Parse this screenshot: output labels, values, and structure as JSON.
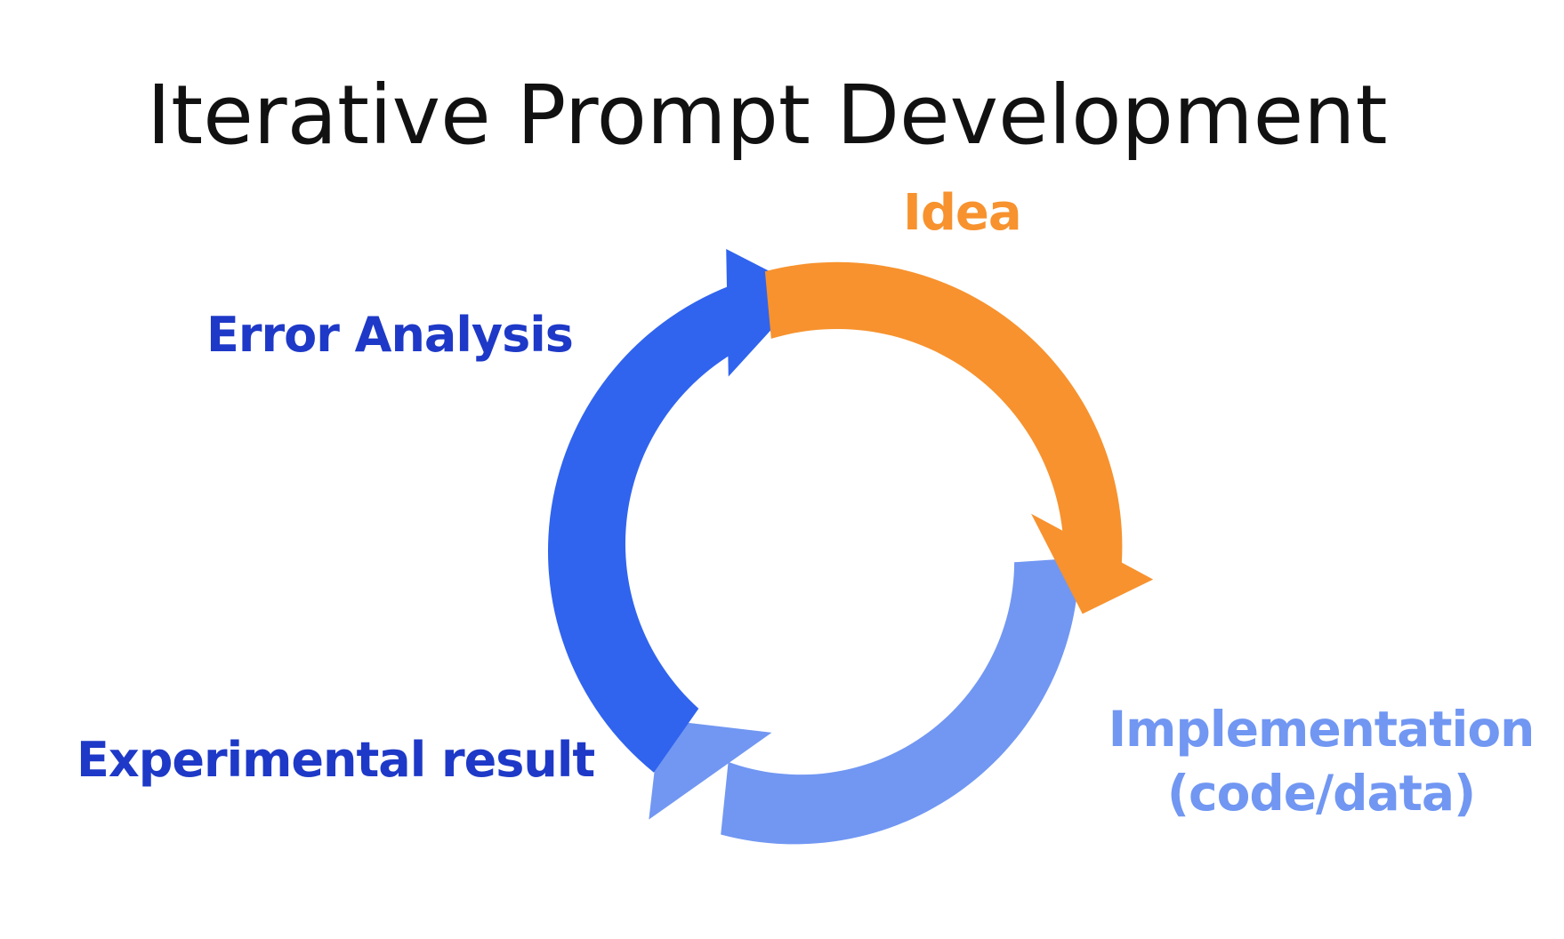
{
  "title": "Iterative Prompt Development",
  "stages": {
    "idea": {
      "label": "Idea",
      "color": "#F7922E"
    },
    "implementation": {
      "line1": "Implementation",
      "line2": "(code/data)",
      "color": "#7197F2"
    },
    "experimental": {
      "label": "Experimental result",
      "color": "#1E39C7"
    },
    "error": {
      "label": "Error Analysis",
      "color": "#1E39C7"
    }
  },
  "arrows": {
    "orange": "#F7922E",
    "light_blue": "#7197F2",
    "blue": "#3064EE"
  }
}
